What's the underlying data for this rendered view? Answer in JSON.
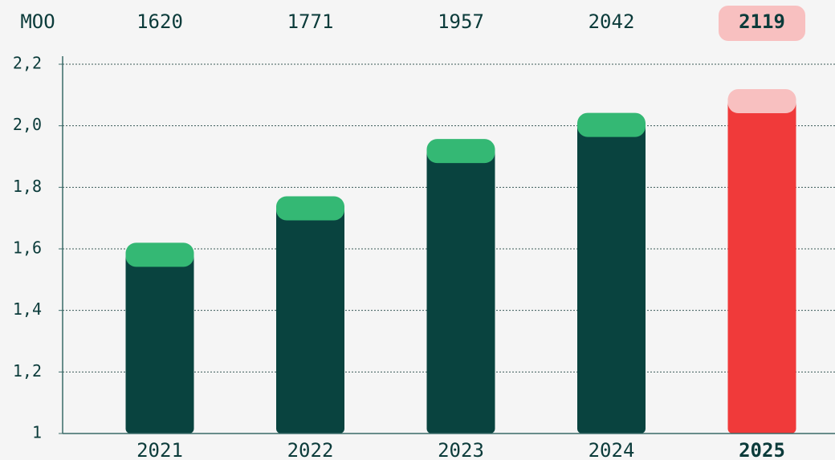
{
  "chart_data": {
    "type": "bar",
    "unit_label": "MOO",
    "categories": [
      "2021",
      "2022",
      "2023",
      "2024",
      "2025"
    ],
    "values": [
      1.62,
      1.771,
      1.957,
      2.042,
      2.119
    ],
    "value_labels": [
      "1620",
      "1771",
      "1957",
      "2042",
      "2119"
    ],
    "color": "#09433f",
    "cap_color": "#34b874",
    "highlight_index": 4,
    "highlight_color": "#f03a3a",
    "highlight_cap_color": "#f8c0c0",
    "ylim": [
      1,
      2.2
    ],
    "yticks": [
      1,
      {
        "value": 1.2,
        "label": "1,2"
      },
      {
        "value": 1.4,
        "label": "1,4"
      },
      {
        "value": 1.6,
        "label": "1,6"
      },
      {
        "value": 1.8,
        "label": "1,8"
      },
      {
        "value": 2.0,
        "label": "2,0"
      },
      {
        "value": 2.2,
        "label": "2,2"
      }
    ],
    "grid": true
  }
}
